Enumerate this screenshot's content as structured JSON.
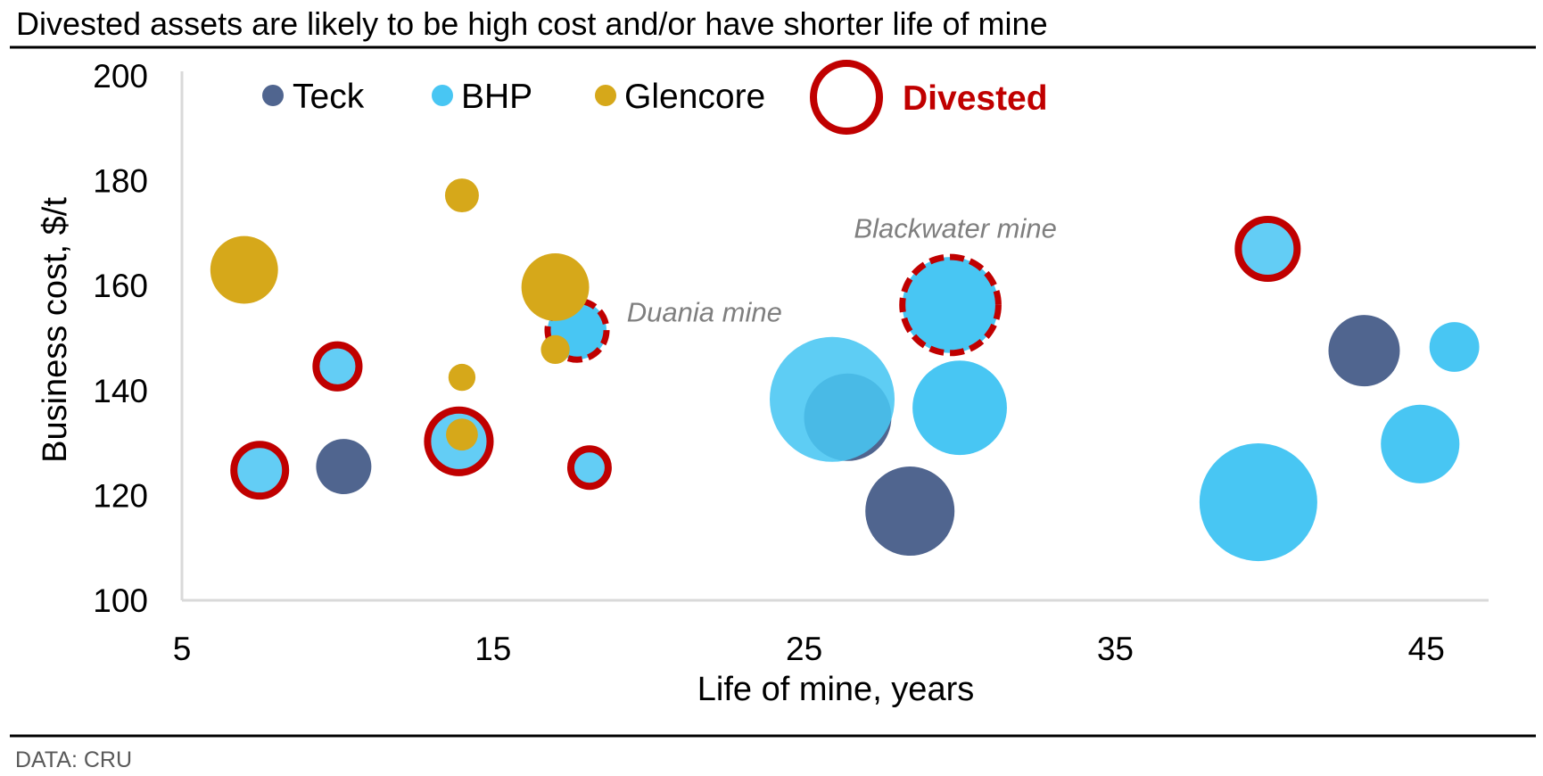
{
  "chart_data": {
    "type": "scatter",
    "subtype": "bubble",
    "title": "Divested assets are likely to be high cost and/or have shorter life of mine",
    "xlabel": "Life of mine, years",
    "ylabel": "Business cost, $/t",
    "xlim": [
      5,
      47
    ],
    "ylim": [
      100,
      200
    ],
    "xticks": [
      5,
      15,
      25,
      35,
      45
    ],
    "yticks": [
      100,
      120,
      140,
      160,
      180,
      200
    ],
    "grid": false,
    "legend": {
      "placement": "top",
      "entries": [
        {
          "name": "Teck",
          "color": "#50658F"
        },
        {
          "name": "BHP",
          "color": "#48C6F3"
        },
        {
          "name": "Glencore",
          "color": "#D6A81A"
        },
        {
          "name": "Divested",
          "color": "#C00000",
          "style": "ring"
        }
      ]
    },
    "size_note": "bubble size is relative (radius proportional to sqrt(size))",
    "series": [
      {
        "name": "Teck",
        "color": "#50658F",
        "points": [
          {
            "x": 10.2,
            "y": 125.5,
            "size": 9.6
          },
          {
            "x": 26.4,
            "y": 134.9,
            "size": 24
          },
          {
            "x": 28.4,
            "y": 117.0,
            "size": 25
          },
          {
            "x": 43.0,
            "y": 147.6,
            "size": 16
          }
        ]
      },
      {
        "name": "BHP",
        "color": "#48C6F3",
        "divested_fill": "#63CDF5",
        "points": [
          {
            "x": 7.5,
            "y": 124.8,
            "size": 8.4,
            "divested": "solid"
          },
          {
            "x": 10.0,
            "y": 144.6,
            "size": 5.8,
            "divested": "solid"
          },
          {
            "x": 13.9,
            "y": 130.3,
            "size": 12.3,
            "divested": "solid"
          },
          {
            "x": 17.7,
            "y": 151.5,
            "size": 10.9,
            "divested": "dashed"
          },
          {
            "x": 18.1,
            "y": 125.3,
            "size": 4.4,
            "divested": "solid"
          },
          {
            "x": 25.9,
            "y": 138.3,
            "size": 49
          },
          {
            "x": 29.7,
            "y": 156.3,
            "size": 29,
            "divested": "dashed"
          },
          {
            "x": 30.0,
            "y": 136.7,
            "size": 28
          },
          {
            "x": 39.6,
            "y": 118.7,
            "size": 43.6
          },
          {
            "x": 39.9,
            "y": 167.0,
            "size": 10.9,
            "divested": "solid"
          },
          {
            "x": 44.8,
            "y": 129.8,
            "size": 19.4
          },
          {
            "x": 45.9,
            "y": 148.3,
            "size": 7.8
          }
        ]
      },
      {
        "name": "Glencore",
        "color": "#D6A81A",
        "points": [
          {
            "x": 7.0,
            "y": 163.0,
            "size": 14.4
          },
          {
            "x": 14.0,
            "y": 177.2,
            "size": 3.6
          },
          {
            "x": 14.0,
            "y": 142.5,
            "size": 2.3
          },
          {
            "x": 14.0,
            "y": 131.6,
            "size": 3.2
          },
          {
            "x": 17.0,
            "y": 159.7,
            "size": 14.4
          },
          {
            "x": 17.0,
            "y": 147.8,
            "size": 2.6
          }
        ]
      }
    ],
    "annotations": [
      {
        "text": "Duania mine",
        "x": 19.3,
        "y": 155.0
      },
      {
        "text": "Blackwater mine",
        "x": 26.6,
        "y": 171.0
      }
    ],
    "source": "DATA: CRU"
  }
}
